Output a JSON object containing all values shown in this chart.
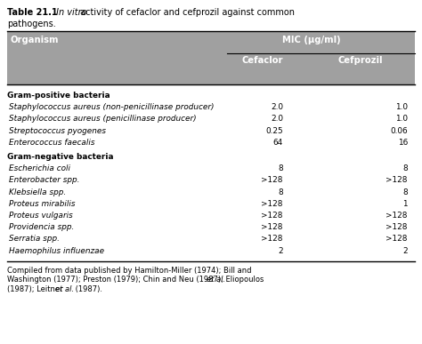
{
  "title_bold": "Table 21.1",
  "title_italic": " In vitro",
  "title_rest": " activity of cefaclor and cefprozil against common",
  "title_line2": "pathogens.",
  "header_bg": "#a0a0a0",
  "col1_header": "Organism",
  "col_group_header": "MIC (μg/ml)",
  "col2_header": "Cefaclor",
  "col3_header": "Cefprozil",
  "section1_header": "Gram-positive bacteria",
  "section2_header": "Gram-negative bacteria",
  "rows": [
    {
      "organism": "Staphylococcus aureus (non-penicillinase producer)",
      "cefaclor": "2.0",
      "cefprozil": "1.0",
      "section": 1
    },
    {
      "organism": "Staphylococcus aureus (penicillinase producer)",
      "cefaclor": "2.0",
      "cefprozil": "1.0",
      "section": 1
    },
    {
      "organism": "Streptococcus pyogenes",
      "cefaclor": "0.25",
      "cefprozil": "0.06",
      "section": 1
    },
    {
      "organism": "Enterococcus faecalis",
      "cefaclor": "64",
      "cefprozil": "16",
      "section": 1
    },
    {
      "organism": "Escherichia coli",
      "cefaclor": "8",
      "cefprozil": "8",
      "section": 2
    },
    {
      "organism": "Enterobacter spp.",
      "cefaclor": ">128",
      "cefprozil": ">128",
      "section": 2
    },
    {
      "organism": "Klebsiella spp.",
      "cefaclor": "8",
      "cefprozil": "8",
      "section": 2
    },
    {
      "organism": "Proteus mirabilis",
      "cefaclor": ">128",
      "cefprozil": "1",
      "section": 2
    },
    {
      "organism": "Proteus vulgaris",
      "cefaclor": ">128",
      "cefprozil": ">128",
      "section": 2
    },
    {
      "organism": "Providencia spp.",
      "cefaclor": ">128",
      "cefprozil": ">128",
      "section": 2
    },
    {
      "organism": "Serratia spp.",
      "cefaclor": ">128",
      "cefprozil": ">128",
      "section": 2
    },
    {
      "organism": "Haemophilus influenzae",
      "cefaclor": "2",
      "cefprozil": "2",
      "section": 2
    }
  ],
  "footnote_parts": [
    [
      {
        "text": "Compiled from data published by Hamilton-Miller (1974); Bill and",
        "italic": false
      }
    ],
    [
      {
        "text": "Washington (1977); Preston (1979); Chin and Neu (1987); Eliopoulos ",
        "italic": false
      },
      {
        "text": "et al.",
        "italic": true
      }
    ],
    [
      {
        "text": "(1987); Leitner ",
        "italic": false
      },
      {
        "text": "et al.",
        "italic": true
      },
      {
        "text": " (1987).",
        "italic": false
      }
    ]
  ],
  "bg_color": "#ffffff",
  "title_fontsize": 7.0,
  "header_fontsize": 7.2,
  "data_fontsize": 6.4,
  "footnote_fontsize": 6.0
}
